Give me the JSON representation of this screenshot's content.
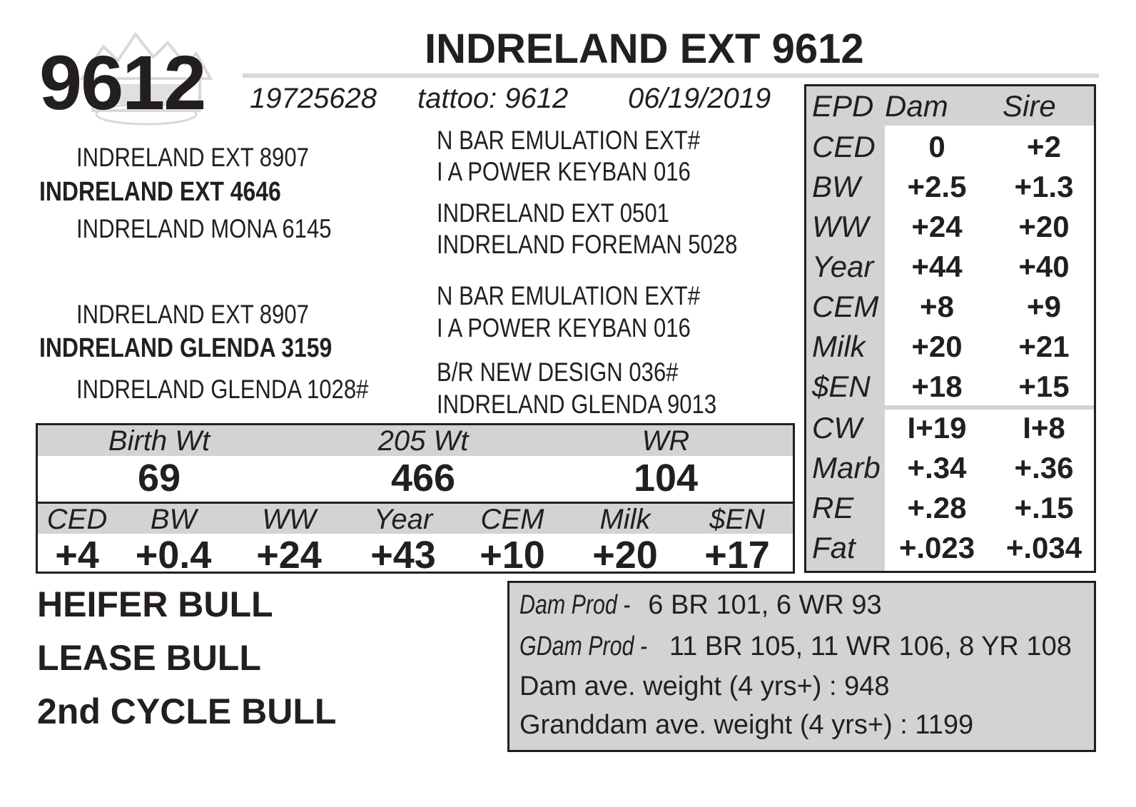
{
  "animal": {
    "lot": "9612",
    "name": "INDRELAND EXT 9612",
    "registration": "19725628",
    "tattoo": "tattoo: 9612",
    "birth_date": "06/19/2019"
  },
  "pedigree": {
    "sire": {
      "sire_of_sire": "INDRELAND EXT 8907",
      "name": "INDRELAND EXT 4646",
      "dam_of_sire": "INDRELAND MONA 6145",
      "sss_1": "N BAR EMULATION EXT#",
      "sss_2": "I A POWER KEYBAN 016",
      "sds_1": "INDRELAND EXT 0501",
      "sds_2": "INDRELAND FOREMAN 5028"
    },
    "dam": {
      "sire_of_dam": "INDRELAND EXT 8907",
      "name": "INDRELAND GLENDA 3159",
      "dam_of_dam": "INDRELAND GLENDA 1028#",
      "dsd_1": "N BAR EMULATION EXT#",
      "dsd_2": "I A POWER KEYBAN 016",
      "ddd_1": "B/R NEW DESIGN 036#",
      "ddd_2": "INDRELAND GLENDA 9013"
    }
  },
  "epd_table": {
    "headers": [
      "EPD",
      "Dam",
      "Sire"
    ],
    "rows": [
      {
        "label": "CED",
        "dam": "0",
        "sire": "+2"
      },
      {
        "label": "BW",
        "dam": "+2.5",
        "sire": "+1.3"
      },
      {
        "label": "WW",
        "dam": "+24",
        "sire": "+20"
      },
      {
        "label": "Year",
        "dam": "+44",
        "sire": "+40"
      },
      {
        "label": "CEM",
        "dam": "+8",
        "sire": "+9"
      },
      {
        "label": "Milk",
        "dam": "+20",
        "sire": "+21"
      },
      {
        "label": "$EN",
        "dam": "+18",
        "sire": "+15"
      },
      {
        "label": "CW",
        "dam": "I+19",
        "sire": "I+8"
      },
      {
        "label": "Marb",
        "dam": "+.34",
        "sire": "+.36"
      },
      {
        "label": "RE",
        "dam": "+.28",
        "sire": "+.15"
      },
      {
        "label": "Fat",
        "dam": "+.023",
        "sire": "+.034"
      }
    ]
  },
  "weights": {
    "labels": [
      "Birth Wt",
      "205 Wt",
      "WR"
    ],
    "values": [
      "69",
      "466",
      "104"
    ]
  },
  "calf_epds": {
    "labels": [
      "CED",
      "BW",
      "WW",
      "Year",
      "CEM",
      "Milk",
      "$EN"
    ],
    "values": [
      "+4",
      "+0.4",
      "+24",
      "+43",
      "+10",
      "+20",
      "+17"
    ]
  },
  "tags": [
    "HEIFER BULL",
    "LEASE BULL",
    "2nd CYCLE BULL"
  ],
  "production": {
    "dam_label": "Dam Prod - ",
    "dam_value": "6 BR 101, 6 WR 93",
    "gdam_label": "GDam Prod - ",
    "gdam_value": "11 BR 105, 11 WR 106, 8 YR 108",
    "dam_weight": "Dam ave. weight (4 yrs+) : 948",
    "gdam_weight": "Granddam ave. weight (4 yrs+) : 1199"
  },
  "logo_icon": "ranch-mountain-logo-watermark"
}
